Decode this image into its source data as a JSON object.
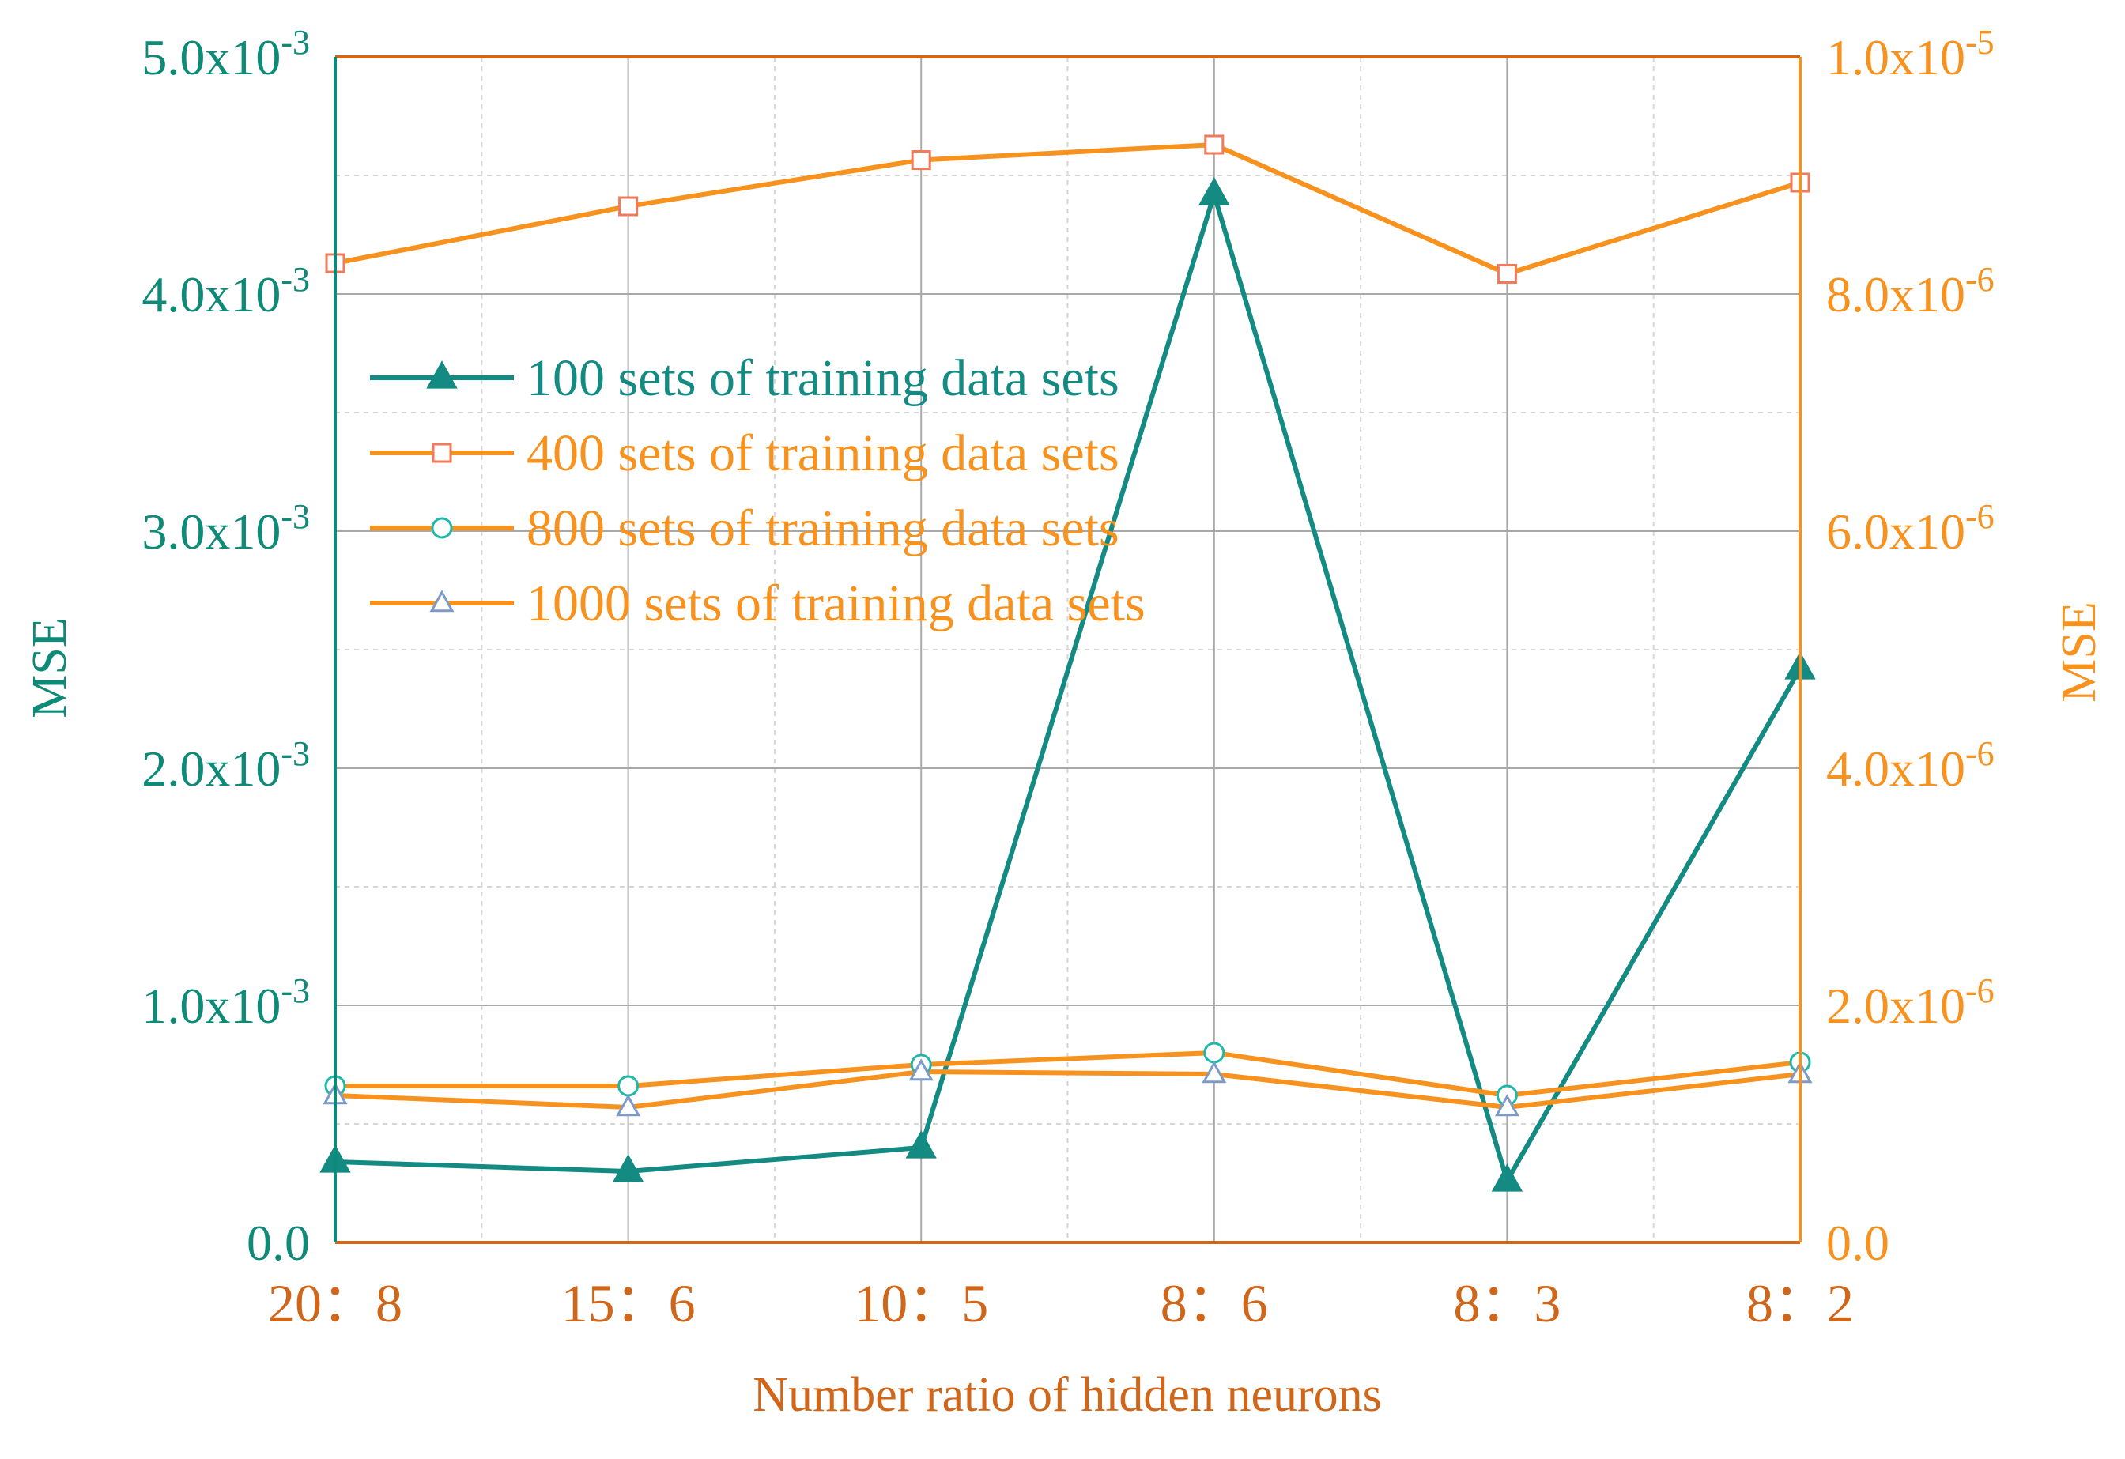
{
  "chart_data": {
    "type": "line",
    "categories": [
      "20：8",
      "15：6",
      "10：5",
      "8：6",
      "8：3",
      "8：2"
    ],
    "xlabel": "Number ratio of hidden neurons",
    "ylabel_left": "MSE",
    "ylabel_right": "MSE",
    "ylim_left": [
      0,
      0.005
    ],
    "ylim_right": [
      0,
      1e-05
    ],
    "left_ticks": [
      {
        "mant": "0.0",
        "exp": ""
      },
      {
        "mant": "1.0x10",
        "exp": "-3"
      },
      {
        "mant": "2.0x10",
        "exp": "-3"
      },
      {
        "mant": "3.0x10",
        "exp": "-3"
      },
      {
        "mant": "4.0x10",
        "exp": "-3"
      },
      {
        "mant": "5.0x10",
        "exp": "-3"
      }
    ],
    "right_ticks": [
      {
        "mant": "0.0",
        "exp": ""
      },
      {
        "mant": "2.0x10",
        "exp": "-6"
      },
      {
        "mant": "4.0x10",
        "exp": "-6"
      },
      {
        "mant": "6.0x10",
        "exp": "-6"
      },
      {
        "mant": "8.0x10",
        "exp": "-6"
      },
      {
        "mant": "1.0x10",
        "exp": "-5"
      }
    ],
    "grid": true,
    "legend_position": "upper-left",
    "series": [
      {
        "name": "100 sets of training data sets",
        "axis": "left",
        "marker": "filled-triangle",
        "values": [
          0.00034,
          0.0003,
          0.0004,
          0.00442,
          0.00026,
          0.00242
        ]
      },
      {
        "name": "400 sets of training data sets",
        "axis": "right",
        "marker": "open-square",
        "values": [
          8.26e-06,
          8.74e-06,
          9.13e-06,
          9.26e-06,
          8.17e-06,
          8.94e-06
        ]
      },
      {
        "name": "800 sets of training data sets",
        "axis": "right",
        "marker": "open-circle",
        "values": [
          1.32e-06,
          1.32e-06,
          1.5e-06,
          1.6e-06,
          1.24e-06,
          1.52e-06
        ]
      },
      {
        "name": "1000 sets of training data sets",
        "axis": "right",
        "marker": "open-triangle",
        "values": [
          1.24e-06,
          1.14e-06,
          1.44e-06,
          1.42e-06,
          1.14e-06,
          1.42e-06
        ]
      }
    ]
  },
  "colors": {
    "teal": "#138A82",
    "axis_teal": "#0E8A78",
    "orange": "#F7921E",
    "tick_orange": "#D0661A",
    "square_marker": "#F07A5A",
    "circle_marker": "#1FB8A8",
    "triangle_marker": "#7E9BC8",
    "grid": "#A8A8A8",
    "grid_minor": "#D6D6D6"
  }
}
